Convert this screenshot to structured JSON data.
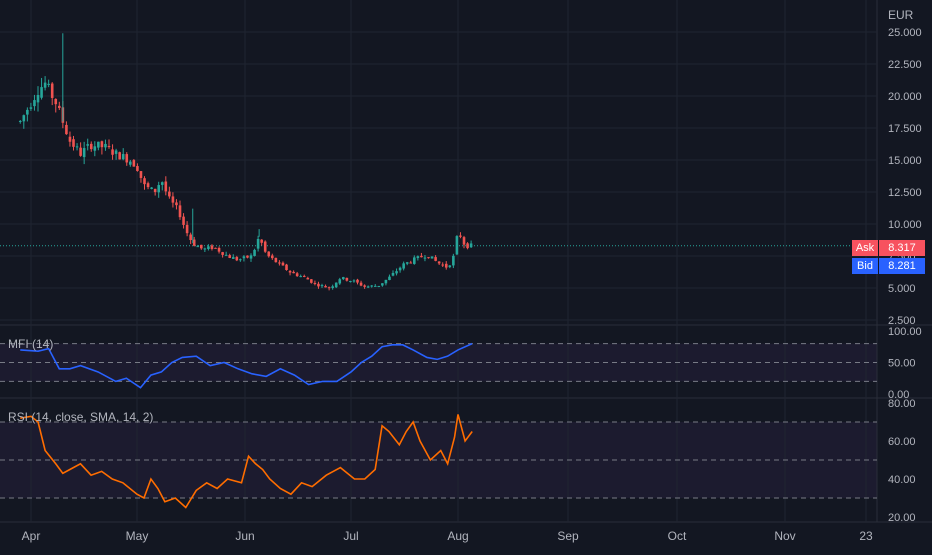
{
  "chart_data": [
    {
      "type": "candlestick",
      "currency": "EUR",
      "yticks": [
        "25.000",
        "22.500",
        "20.000",
        "17.500",
        "15.000",
        "12.500",
        "10.000",
        "7.500",
        "5.000",
        "2.500"
      ],
      "ylim": [
        2.5,
        25
      ],
      "last_price": 8.3,
      "ask": {
        "label": "Ask",
        "value": "8.317"
      },
      "bid": {
        "label": "Bid",
        "value": "8.281"
      },
      "grid": true,
      "close_anchors": [
        [
          "Mar 29",
          18.0
        ],
        [
          "Apr 1",
          19.5
        ],
        [
          "Apr 3",
          20.5
        ],
        [
          "Apr 5",
          21.0
        ],
        [
          "Apr 8",
          19.5
        ],
        [
          "Apr 10",
          18.0
        ],
        [
          "Apr 12",
          16.5
        ],
        [
          "Apr 15",
          15.5
        ],
        [
          "Apr 18",
          16.2
        ],
        [
          "Apr 22",
          16.0
        ],
        [
          "Apr 25",
          15.5
        ],
        [
          "Apr 29",
          15.0
        ],
        [
          "May 1",
          14.5
        ],
        [
          "May 3",
          13.0
        ],
        [
          "May 6",
          12.5
        ],
        [
          "May 8",
          13.5
        ],
        [
          "May 10",
          12.0
        ],
        [
          "May 13",
          11.0
        ],
        [
          "May 15",
          9.5
        ],
        [
          "May 17",
          8.5
        ],
        [
          "May 20",
          8.0
        ],
        [
          "May 23",
          8.2
        ],
        [
          "May 27",
          7.5
        ],
        [
          "May 30",
          7.2
        ],
        [
          "Jun 3",
          7.5
        ],
        [
          "Jun 5",
          9.0
        ],
        [
          "Jun 7",
          7.6
        ],
        [
          "Jun 10",
          7.0
        ],
        [
          "Jun 14",
          6.2
        ],
        [
          "Jun 18",
          5.8
        ],
        [
          "Jun 21",
          5.3
        ],
        [
          "Jun 25",
          5.0
        ],
        [
          "Jun 28",
          5.8
        ],
        [
          "Jul 2",
          5.5
        ],
        [
          "Jul 5",
          5.1
        ],
        [
          "Jul 9",
          5.2
        ],
        [
          "Jul 12",
          5.8
        ],
        [
          "Jul 16",
          6.8
        ],
        [
          "Jul 19",
          7.2
        ],
        [
          "Jul 23",
          7.6
        ],
        [
          "Jul 26",
          7.0
        ],
        [
          "Jul 29",
          6.6
        ],
        [
          "Jul 31",
          7.6
        ],
        [
          "Aug 1",
          9.5
        ],
        [
          "Aug 3",
          8.3
        ],
        [
          "Aug 5",
          8.3
        ]
      ],
      "spikes": [
        [
          "Apr 10",
          24.9
        ],
        [
          "Jun 5",
          9.6
        ],
        [
          "May 17",
          11.2
        ]
      ]
    },
    {
      "type": "line",
      "title": "MFI (14)",
      "yticks": [
        "100.00",
        "50.00",
        "0.00"
      ],
      "ylim": [
        0,
        100
      ],
      "levels": [
        80,
        50,
        20
      ],
      "color": "#2962ff",
      "series": [
        {
          "x": [
            "Mar 29",
            "Apr 3",
            "Apr 6",
            "Apr 9",
            "Apr 12",
            "Apr 15",
            "Apr 20",
            "Apr 25",
            "Apr 28",
            "May 2",
            "May 5",
            "May 8",
            "May 11",
            "May 14",
            "May 18",
            "May 22",
            "May 26",
            "May 30",
            "Jun 3",
            "Jun 7",
            "Jun 11",
            "Jun 15",
            "Jun 19",
            "Jun 23",
            "Jun 27",
            "Jul 1",
            "Jul 4",
            "Jul 7",
            "Jul 10",
            "Jul 13",
            "Jul 16",
            "Jul 19",
            "Jul 23",
            "Jul 26",
            "Jul 29",
            "Aug 1",
            "Aug 5"
          ],
          "y": [
            70,
            68,
            72,
            40,
            40,
            45,
            35,
            20,
            25,
            10,
            30,
            35,
            50,
            58,
            60,
            45,
            50,
            40,
            32,
            28,
            40,
            30,
            15,
            20,
            20,
            35,
            50,
            60,
            75,
            78,
            78,
            70,
            58,
            55,
            60,
            70,
            80
          ]
        }
      ]
    },
    {
      "type": "line",
      "title": "RSI (14, close, SMA, 14, 2)",
      "yticks": [
        "80.00",
        "60.00",
        "40.00",
        "20.00"
      ],
      "ylim": [
        20,
        80
      ],
      "levels": [
        70,
        50,
        30
      ],
      "color": "#ff6d00",
      "series": [
        {
          "x": [
            "Mar 29",
            "Apr 1",
            "Apr 3",
            "Apr 5",
            "Apr 8",
            "Apr 10",
            "Apr 12",
            "Apr 15",
            "Apr 18",
            "Apr 21",
            "Apr 24",
            "Apr 27",
            "May 1",
            "May 3",
            "May 5",
            "May 7",
            "May 9",
            "May 12",
            "May 15",
            "May 18",
            "May 21",
            "May 24",
            "May 27",
            "May 31",
            "Jun 2",
            "Jun 4",
            "Jun 6",
            "Jun 8",
            "Jun 11",
            "Jun 14",
            "Jun 17",
            "Jun 20",
            "Jun 24",
            "Jun 28",
            "Jul 2",
            "Jul 5",
            "Jul 8",
            "Jul 10",
            "Jul 12",
            "Jul 15",
            "Jul 17",
            "Jul 19",
            "Jul 21",
            "Jul 24",
            "Jul 27",
            "Jul 29",
            "Jul 31",
            "Aug 1",
            "Aug 3",
            "Aug 5"
          ],
          "y": [
            72,
            73,
            70,
            55,
            48,
            43,
            45,
            48,
            42,
            44,
            40,
            38,
            32,
            30,
            40,
            35,
            28,
            30,
            25,
            34,
            38,
            35,
            40,
            38,
            52,
            48,
            45,
            40,
            35,
            32,
            38,
            36,
            42,
            46,
            40,
            40,
            45,
            68,
            65,
            58,
            65,
            70,
            60,
            50,
            55,
            48,
            62,
            74,
            60,
            65
          ]
        }
      ]
    }
  ],
  "xaxis": {
    "ticks": [
      "Apr",
      "May",
      "Jun",
      "Jul",
      "Aug",
      "Sep",
      "Oct",
      "Nov",
      "23"
    ]
  }
}
